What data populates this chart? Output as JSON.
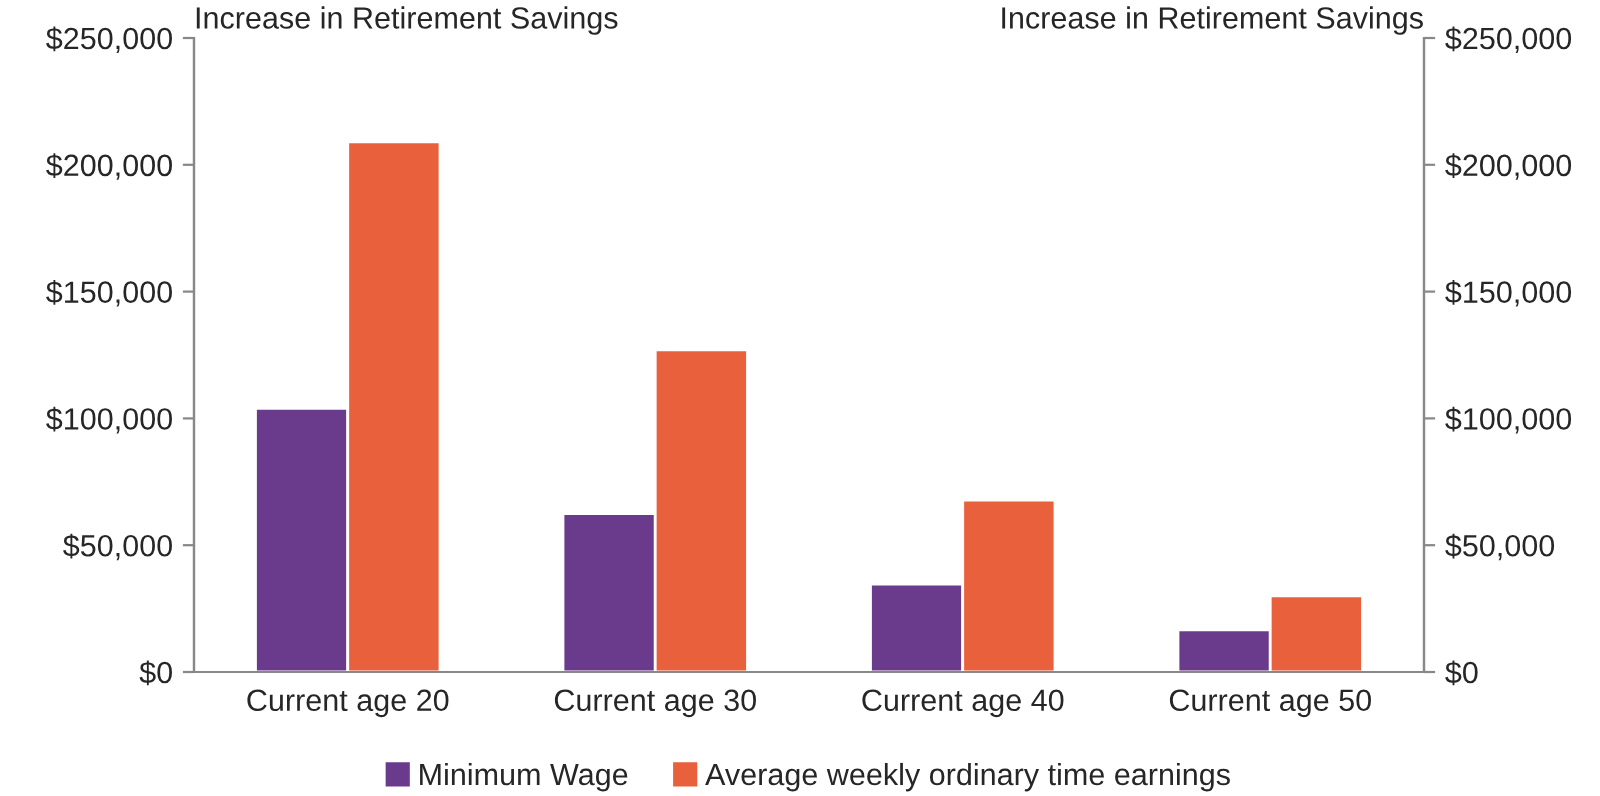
{
  "chart_data": {
    "type": "bar",
    "categories": [
      "Current age 20",
      "Current age 30",
      "Current age 40",
      "Current age 50"
    ],
    "series": [
      {
        "name": "Minimum Wage",
        "color": "#6a3a8c",
        "values": [
          104000,
          62500,
          34700,
          16600
        ]
      },
      {
        "name": "Average weekly ordinary time earnings",
        "color": "#e8603c",
        "values": [
          209000,
          127000,
          67800,
          30000
        ]
      }
    ],
    "ylabel": "Increase in Retirement Savings",
    "y2label": "Increase in Retirement Savings",
    "ylim": [
      0,
      250000
    ],
    "yticks": [
      {
        "value": 0,
        "label": "$0"
      },
      {
        "value": 50000,
        "label": "$50,000"
      },
      {
        "value": 100000,
        "label": "$100,000"
      },
      {
        "value": 150000,
        "label": "$150,000"
      },
      {
        "value": 200000,
        "label": "$200,000"
      },
      {
        "value": 250000,
        "label": "$250,000"
      }
    ],
    "y2lim": [
      0,
      250000
    ],
    "y2ticks": [
      {
        "value": 0,
        "label": "$0"
      },
      {
        "value": 50000,
        "label": "$50,000"
      },
      {
        "value": 100000,
        "label": "$100,000"
      },
      {
        "value": 150000,
        "label": "$150,000"
      },
      {
        "value": 200000,
        "label": "$200,000"
      },
      {
        "value": 250000,
        "label": "$250,000"
      }
    ],
    "legend": "bottom"
  }
}
